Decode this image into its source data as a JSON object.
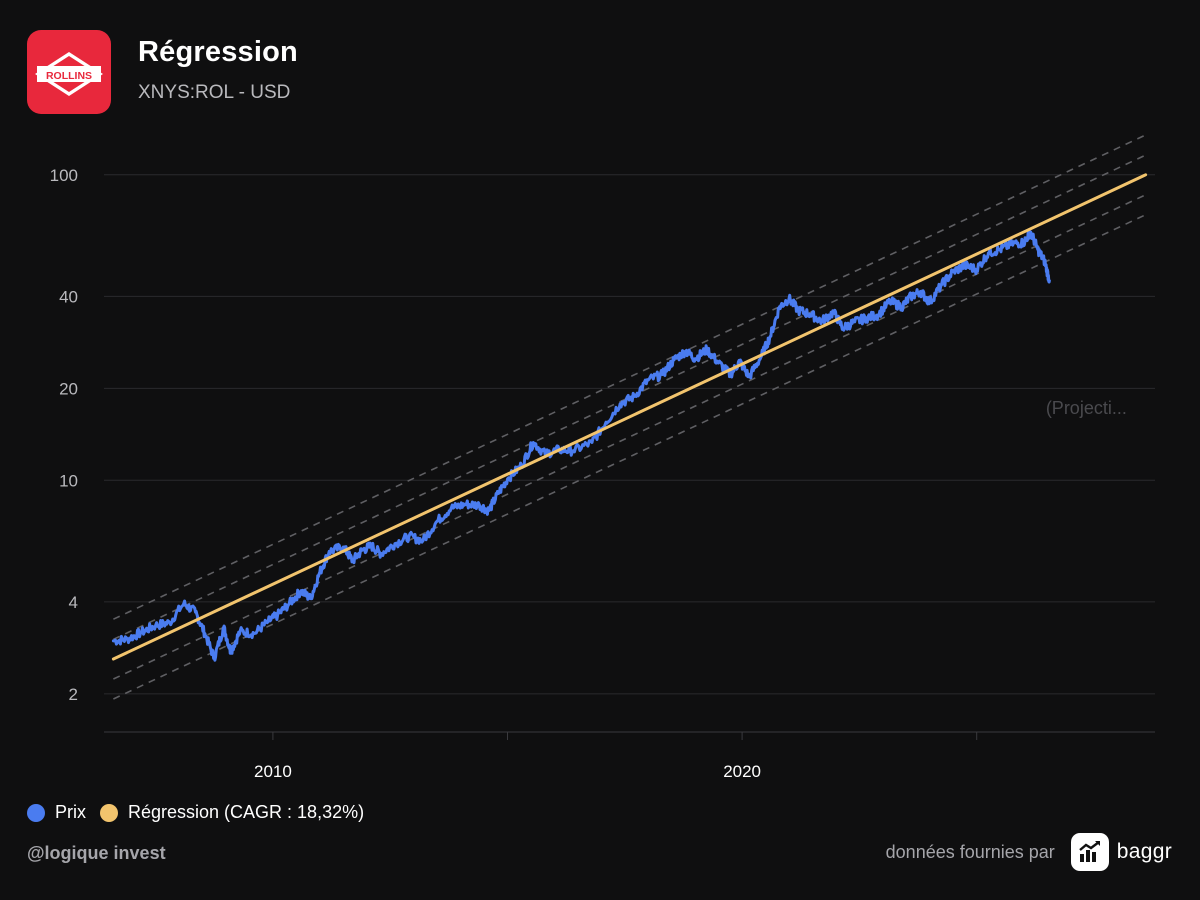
{
  "header": {
    "logo_text": "ROLLINS",
    "title": "Régression",
    "subtitle": "XNYS:ROL - USD"
  },
  "legend": {
    "price_label": "Prix",
    "regression_label": "Régression (CAGR : 18,32%)"
  },
  "footer": {
    "author": "@logique invest",
    "credit": "données fournies par",
    "brand": "baggr"
  },
  "colors": {
    "background": "#0f0f10",
    "price": "#4a7cf0",
    "regression": "#f2c46d",
    "bands": "#5f5f63",
    "grid": "#2a2a2d",
    "logo": "#e8283c"
  },
  "chart_data": {
    "type": "line",
    "title": "Régression",
    "subtitle": "XNYS:ROL - USD",
    "y_scale": "log",
    "ylim": [
      1.5,
      130
    ],
    "xlim": [
      2006.4,
      2028.8
    ],
    "y_ticks": [
      2,
      4,
      10,
      20,
      40,
      100
    ],
    "x_ticks": [
      2005,
      2010,
      2015,
      2020,
      2025
    ],
    "x_tick_labels": [
      "2010",
      "2020"
    ],
    "x_tick_label_years": [
      2010,
      2020
    ],
    "annotation": "(Projecti...",
    "annotation_year": 2028.2,
    "annotation_value": 16.5,
    "grid": true,
    "legend_position": "bottom-left",
    "regression": {
      "name": "Régression (CAGR : 18,32%)",
      "start": [
        2006.6,
        2.6
      ],
      "end": [
        2028.6,
        100.0
      ],
      "band_factors": [
        0.74,
        0.86,
        1.16,
        1.35
      ]
    },
    "series": [
      {
        "name": "Prix",
        "points": [
          [
            2006.6,
            2.98
          ],
          [
            2006.9,
            3.02
          ],
          [
            2007.2,
            3.18
          ],
          [
            2007.5,
            3.35
          ],
          [
            2007.8,
            3.42
          ],
          [
            2008.1,
            3.95
          ],
          [
            2008.35,
            3.7
          ],
          [
            2008.55,
            3.15
          ],
          [
            2008.75,
            2.62
          ],
          [
            2008.95,
            3.3
          ],
          [
            2009.1,
            2.75
          ],
          [
            2009.3,
            3.2
          ],
          [
            2009.6,
            3.15
          ],
          [
            2009.9,
            3.45
          ],
          [
            2010.1,
            3.62
          ],
          [
            2010.35,
            3.95
          ],
          [
            2010.6,
            4.35
          ],
          [
            2010.8,
            4.1
          ],
          [
            2011.0,
            5.0
          ],
          [
            2011.2,
            5.85
          ],
          [
            2011.5,
            6.05
          ],
          [
            2011.7,
            5.45
          ],
          [
            2011.9,
            5.9
          ],
          [
            2012.1,
            6.1
          ],
          [
            2012.3,
            5.75
          ],
          [
            2012.6,
            6.2
          ],
          [
            2012.9,
            6.55
          ],
          [
            2013.2,
            6.35
          ],
          [
            2013.5,
            7.35
          ],
          [
            2013.8,
            8.1
          ],
          [
            2014.1,
            8.35
          ],
          [
            2014.4,
            8.3
          ],
          [
            2014.6,
            7.95
          ],
          [
            2014.8,
            9.05
          ],
          [
            2015.0,
            10.1
          ],
          [
            2015.3,
            11.2
          ],
          [
            2015.55,
            13.3
          ],
          [
            2015.8,
            12.2
          ],
          [
            2016.1,
            12.6
          ],
          [
            2016.4,
            12.5
          ],
          [
            2016.8,
            13.3
          ],
          [
            2017.1,
            15.5
          ],
          [
            2017.4,
            17.8
          ],
          [
            2017.7,
            18.8
          ],
          [
            2018.0,
            21.3
          ],
          [
            2018.3,
            22.2
          ],
          [
            2018.55,
            24.8
          ],
          [
            2018.8,
            26.5
          ],
          [
            2019.0,
            25.0
          ],
          [
            2019.25,
            26.8
          ],
          [
            2019.5,
            24.2
          ],
          [
            2019.75,
            22.2
          ],
          [
            2019.95,
            24.5
          ],
          [
            2020.15,
            21.8
          ],
          [
            2020.4,
            25.3
          ],
          [
            2020.6,
            29.6
          ],
          [
            2020.8,
            37.0
          ],
          [
            2021.0,
            39.3
          ],
          [
            2021.2,
            36.0
          ],
          [
            2021.45,
            35.0
          ],
          [
            2021.7,
            33.2
          ],
          [
            2021.95,
            35.5
          ],
          [
            2022.15,
            31.5
          ],
          [
            2022.4,
            33.0
          ],
          [
            2022.65,
            34.0
          ],
          [
            2022.9,
            34.8
          ],
          [
            2023.15,
            38.5
          ],
          [
            2023.4,
            37.0
          ],
          [
            2023.6,
            40.0
          ],
          [
            2023.8,
            41.5
          ],
          [
            2024.0,
            38.3
          ],
          [
            2024.25,
            43.6
          ],
          [
            2024.5,
            48.2
          ],
          [
            2024.75,
            50.5
          ],
          [
            2025.0,
            49.0
          ],
          [
            2025.25,
            55.5
          ],
          [
            2025.5,
            57.0
          ],
          [
            2025.75,
            59.5
          ],
          [
            2026.0,
            60.0
          ],
          [
            2026.15,
            65.0
          ],
          [
            2026.3,
            57.0
          ],
          [
            2026.45,
            52.0
          ],
          [
            2026.55,
            45.0
          ]
        ]
      }
    ]
  }
}
